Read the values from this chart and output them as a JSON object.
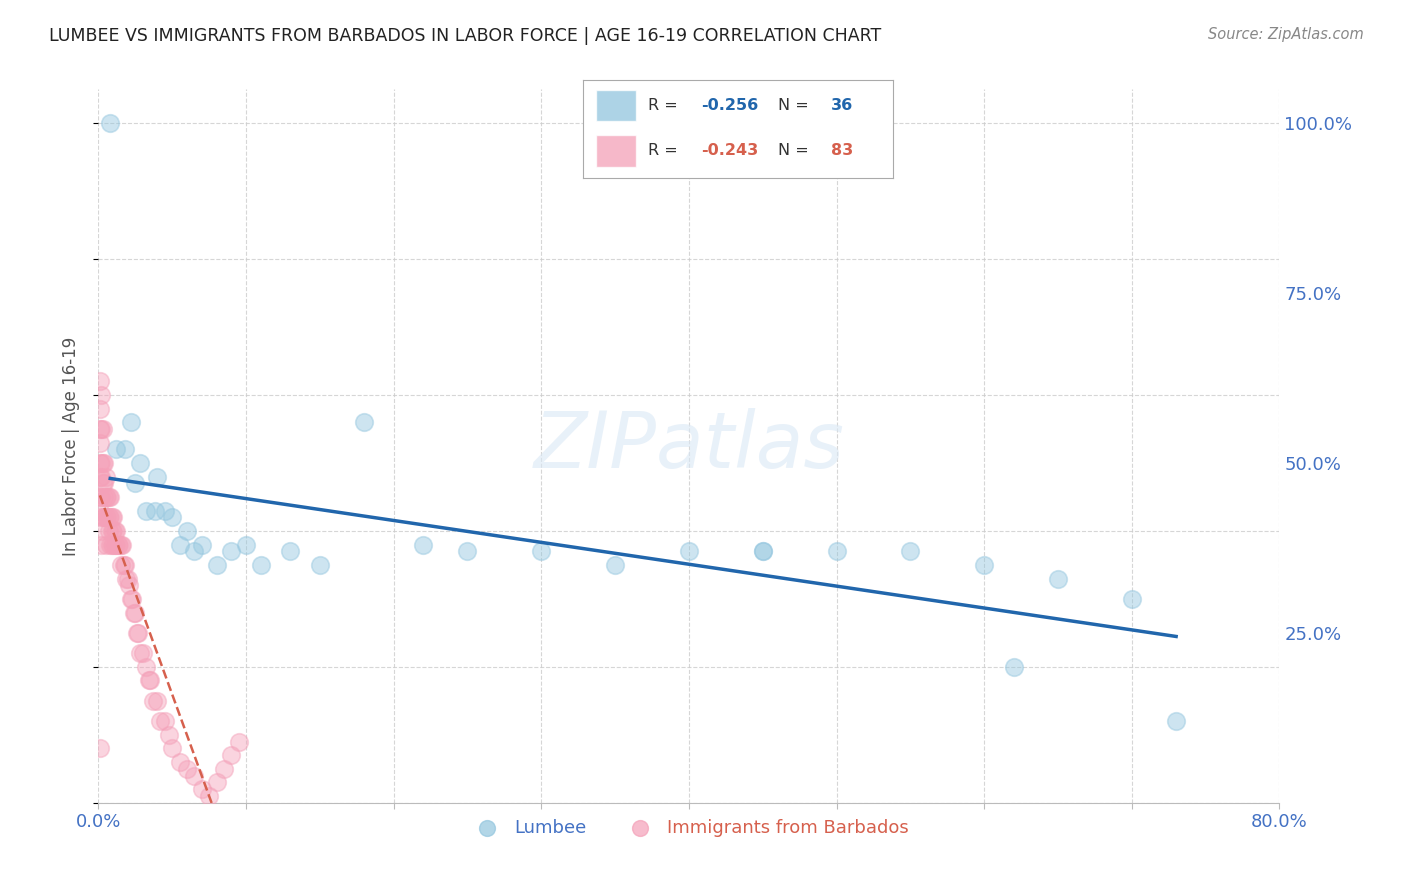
{
  "title": "LUMBEE VS IMMIGRANTS FROM BARBADOS IN LABOR FORCE | AGE 16-19 CORRELATION CHART",
  "source": "Source: ZipAtlas.com",
  "ylabel": "In Labor Force | Age 16-19",
  "watermark": "ZIPatlas",
  "xlim": [
    0.0,
    0.8
  ],
  "ylim": [
    0.0,
    1.05
  ],
  "xticks": [
    0.0,
    0.1,
    0.2,
    0.3,
    0.4,
    0.5,
    0.6,
    0.7,
    0.8
  ],
  "xticklabels": [
    "0.0%",
    "",
    "",
    "",
    "",
    "",
    "",
    "",
    "80.0%"
  ],
  "yticks_right": [
    0.0,
    0.25,
    0.5,
    0.75,
    1.0
  ],
  "yticklabels_right": [
    "",
    "25.0%",
    "50.0%",
    "75.0%",
    "100.0%"
  ],
  "legend_label_blue": "Lumbee",
  "legend_label_pink": "Immigrants from Barbados",
  "blue_color": "#92C5DE",
  "pink_color": "#F4A0B8",
  "trendline_blue_color": "#2166AC",
  "trendline_pink_color": "#D6604D",
  "background_color": "#ffffff",
  "grid_color": "#cccccc",
  "title_color": "#222222",
  "right_axis_color": "#4472c4",
  "bottom_axis_color": "#4472c4",
  "lumbee_x": [
    0.008,
    0.012,
    0.018,
    0.022,
    0.025,
    0.028,
    0.032,
    0.038,
    0.04,
    0.045,
    0.05,
    0.055,
    0.06,
    0.065,
    0.07,
    0.08,
    0.09,
    0.1,
    0.11,
    0.13,
    0.15,
    0.18,
    0.22,
    0.25,
    0.3,
    0.35,
    0.4,
    0.45,
    0.5,
    0.55,
    0.6,
    0.65,
    0.7,
    0.45,
    0.62,
    0.73
  ],
  "lumbee_y": [
    1.0,
    0.52,
    0.52,
    0.56,
    0.47,
    0.5,
    0.43,
    0.43,
    0.48,
    0.43,
    0.42,
    0.38,
    0.4,
    0.37,
    0.38,
    0.35,
    0.37,
    0.38,
    0.35,
    0.37,
    0.35,
    0.56,
    0.38,
    0.37,
    0.37,
    0.35,
    0.37,
    0.37,
    0.37,
    0.37,
    0.35,
    0.33,
    0.3,
    0.37,
    0.2,
    0.12
  ],
  "barbados_x": [
    0.001,
    0.001,
    0.001,
    0.001,
    0.001,
    0.001,
    0.001,
    0.001,
    0.001,
    0.002,
    0.002,
    0.002,
    0.002,
    0.002,
    0.002,
    0.002,
    0.002,
    0.003,
    0.003,
    0.003,
    0.003,
    0.004,
    0.004,
    0.004,
    0.004,
    0.005,
    0.005,
    0.005,
    0.005,
    0.006,
    0.006,
    0.007,
    0.007,
    0.007,
    0.008,
    0.008,
    0.008,
    0.009,
    0.009,
    0.009,
    0.01,
    0.01,
    0.01,
    0.011,
    0.011,
    0.012,
    0.012,
    0.013,
    0.014,
    0.015,
    0.015,
    0.016,
    0.017,
    0.018,
    0.019,
    0.02,
    0.021,
    0.022,
    0.023,
    0.024,
    0.025,
    0.026,
    0.027,
    0.028,
    0.03,
    0.032,
    0.034,
    0.035,
    0.037,
    0.04,
    0.042,
    0.045,
    0.048,
    0.05,
    0.055,
    0.06,
    0.065,
    0.07,
    0.075,
    0.08,
    0.085,
    0.09,
    0.095
  ],
  "barbados_y": [
    0.62,
    0.58,
    0.55,
    0.53,
    0.5,
    0.48,
    0.45,
    0.43,
    0.08,
    0.6,
    0.55,
    0.5,
    0.48,
    0.45,
    0.42,
    0.4,
    0.38,
    0.55,
    0.5,
    0.47,
    0.42,
    0.5,
    0.47,
    0.45,
    0.42,
    0.48,
    0.45,
    0.42,
    0.38,
    0.45,
    0.42,
    0.45,
    0.42,
    0.4,
    0.45,
    0.42,
    0.38,
    0.42,
    0.4,
    0.38,
    0.42,
    0.4,
    0.38,
    0.4,
    0.38,
    0.4,
    0.38,
    0.38,
    0.38,
    0.38,
    0.35,
    0.38,
    0.35,
    0.35,
    0.33,
    0.33,
    0.32,
    0.3,
    0.3,
    0.28,
    0.28,
    0.25,
    0.25,
    0.22,
    0.22,
    0.2,
    0.18,
    0.18,
    0.15,
    0.15,
    0.12,
    0.12,
    0.1,
    0.08,
    0.06,
    0.05,
    0.04,
    0.02,
    0.01,
    0.03,
    0.05,
    0.07,
    0.09
  ]
}
